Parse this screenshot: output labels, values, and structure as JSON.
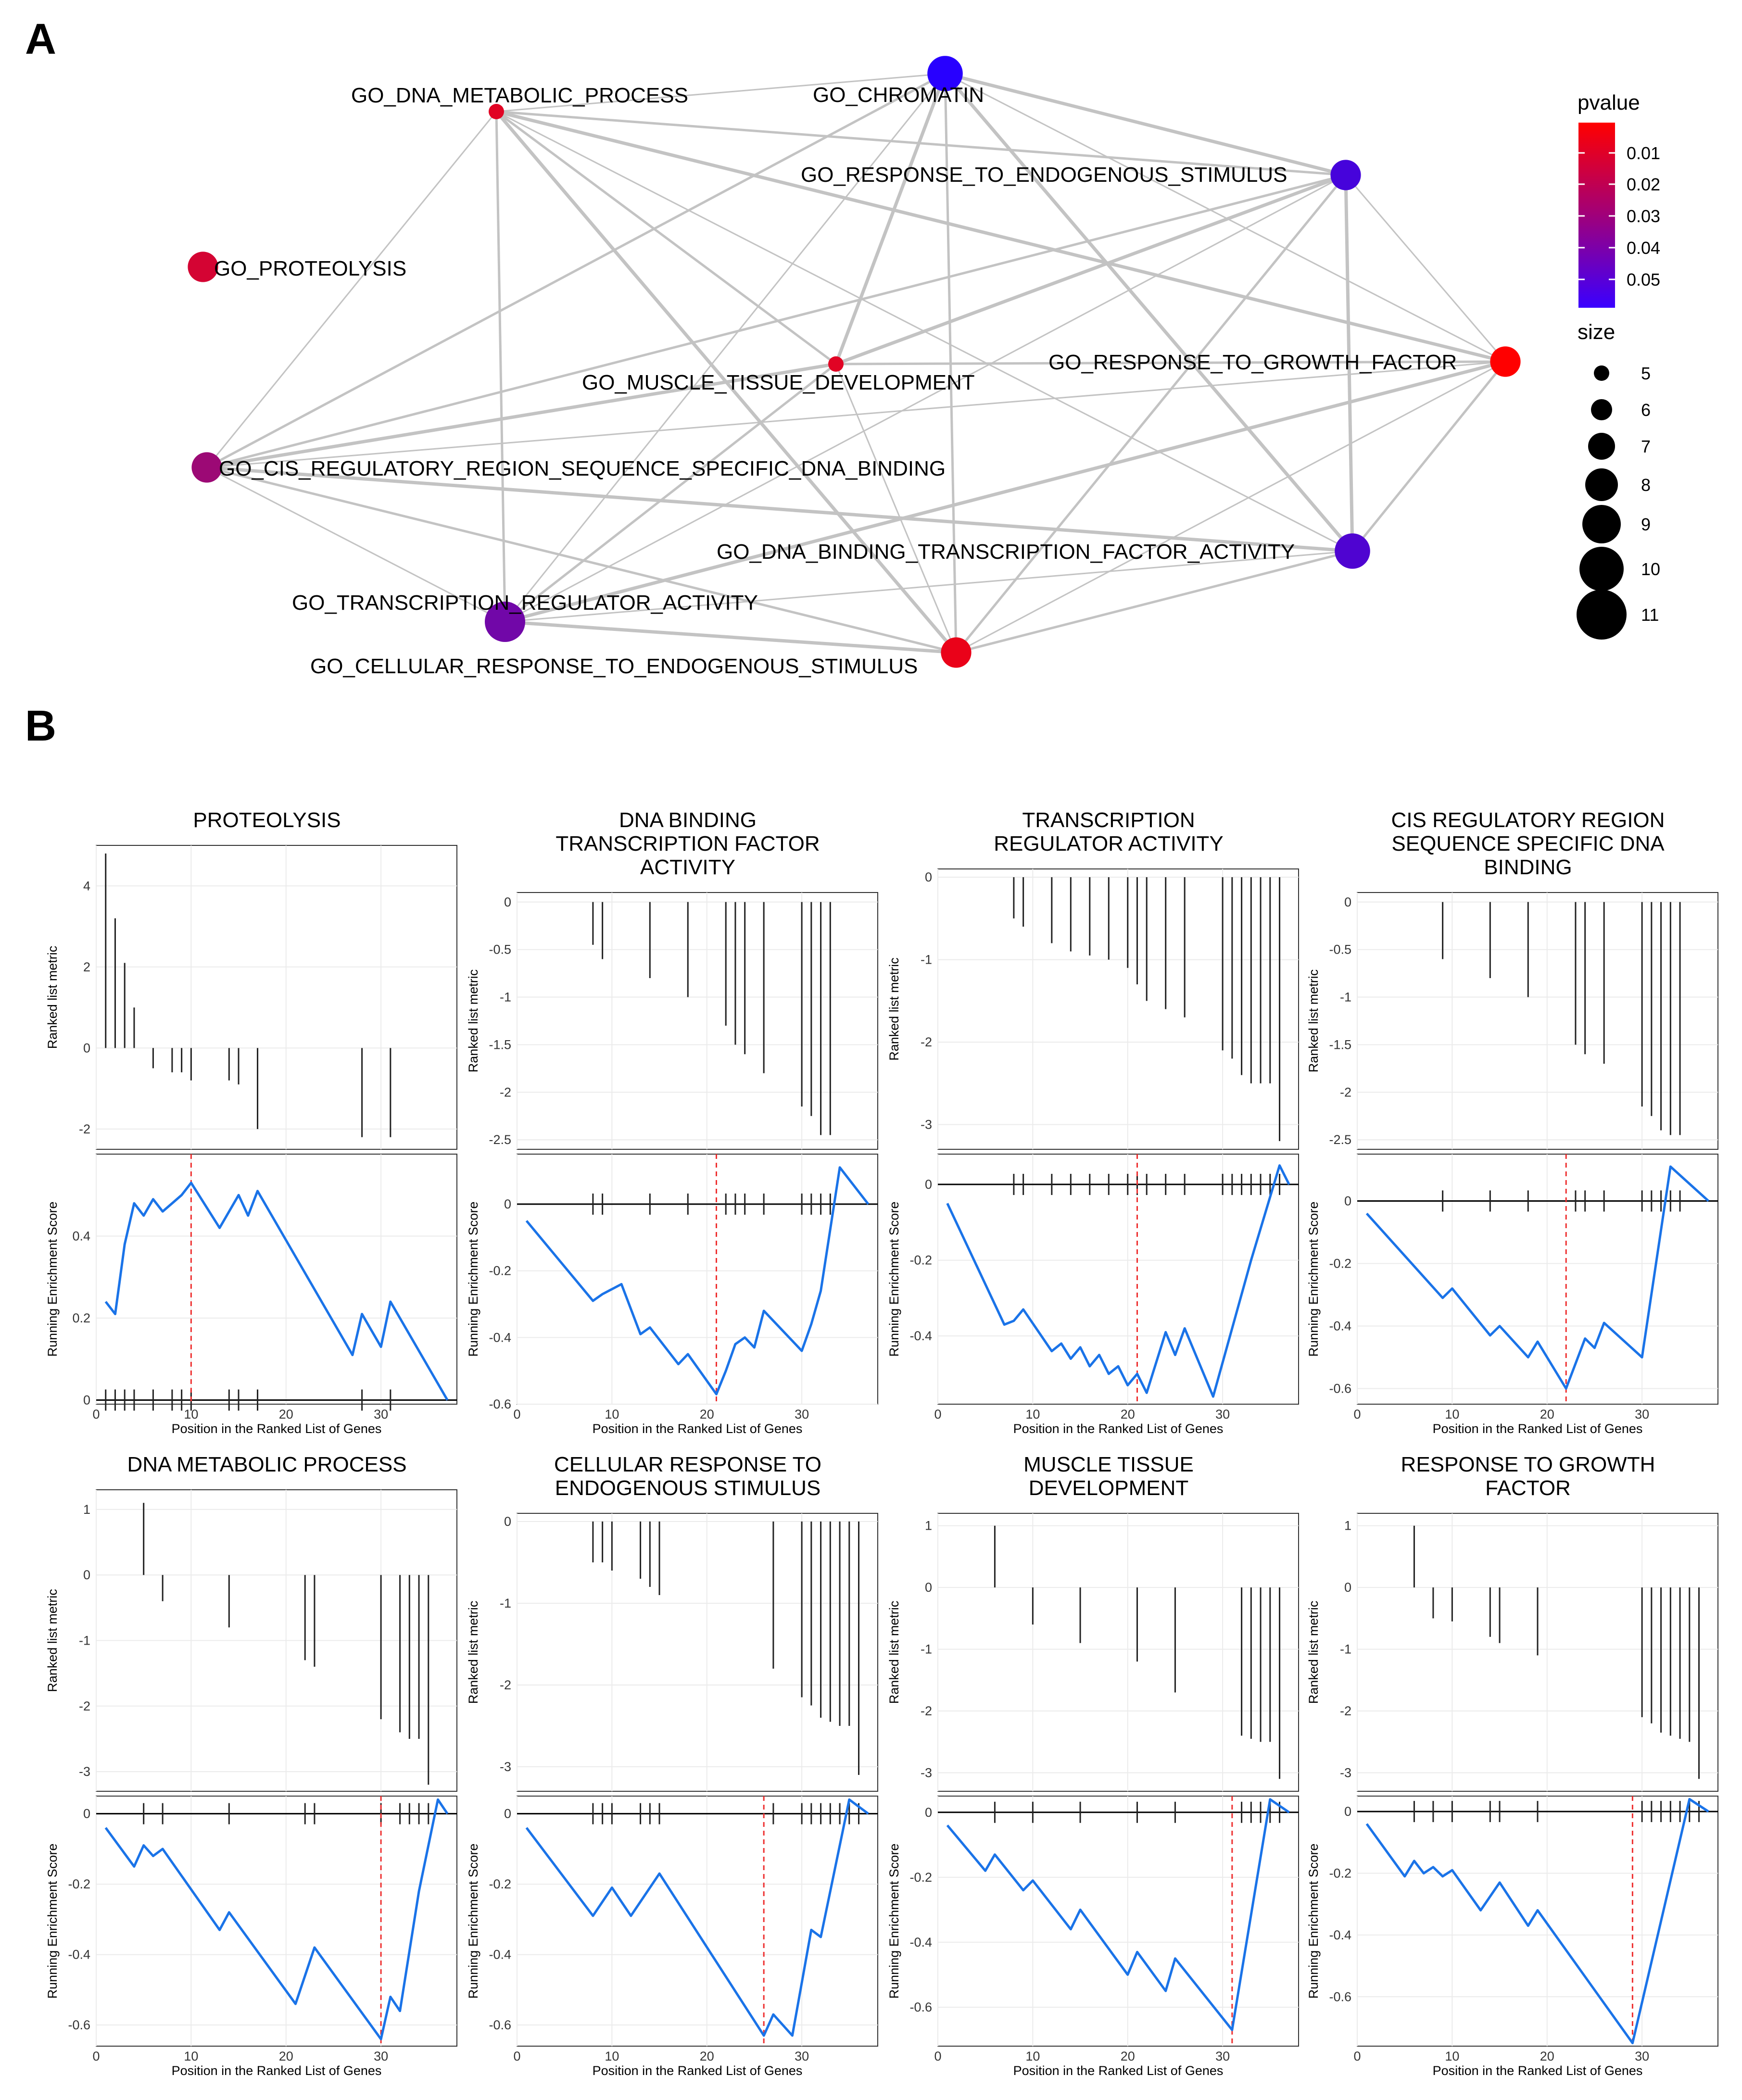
{
  "panel_labels": {
    "a": "A",
    "b": "B"
  },
  "network": {
    "legend": {
      "pvalue_title": "pvalue",
      "pvalue_ticks": [
        "0.01",
        "0.02",
        "0.03",
        "0.04",
        "0.05"
      ],
      "size_title": "size",
      "size_ticks": [
        "5",
        "6",
        "7",
        "8",
        "9",
        "10",
        "11"
      ],
      "color_low": "#ff0000",
      "color_high": "#0000ff"
    }
  },
  "chart_data": [
    {
      "type": "network",
      "title": "",
      "nodes": [
        {
          "id": "n0",
          "label": "GO_DNA_METABOLIC_PROCESS",
          "pvalue": 0.012,
          "size": 5
        },
        {
          "id": "n1",
          "label": "GO_CHROMATIN",
          "pvalue": 0.055,
          "size": 9
        },
        {
          "id": "n2",
          "label": "GO_RESPONSE_TO_ENDOGENOUS_STIMULUS",
          "pvalue": 0.048,
          "size": 8
        },
        {
          "id": "n3",
          "label": "GO_PROTEOLYSIS",
          "pvalue": 0.015,
          "size": 8
        },
        {
          "id": "n4",
          "label": "GO_MUSCLE_TISSUE_DEVELOPMENT",
          "pvalue": 0.012,
          "size": 5
        },
        {
          "id": "n5",
          "label": "GO_RESPONSE_TO_GROWTH_FACTOR",
          "pvalue": 0.005,
          "size": 8
        },
        {
          "id": "n6",
          "label": "GO_CIS_REGULATORY_REGION_SEQUENCE_SPECIFIC_DNA_BINDING",
          "pvalue": 0.028,
          "size": 8
        },
        {
          "id": "n7",
          "label": "GO_DNA_BINDING_TRANSCRIPTION_FACTOR_ACTIVITY",
          "pvalue": 0.046,
          "size": 9
        },
        {
          "id": "n8",
          "label": "GO_TRANSCRIPTION_REGULATOR_ACTIVITY",
          "pvalue": 0.038,
          "size": 10
        },
        {
          "id": "n9",
          "label": "GO_CELLULAR_RESPONSE_TO_ENDOGENOUS_STIMULUS",
          "pvalue": 0.01,
          "size": 8
        }
      ],
      "edges": [
        [
          "n0",
          "n1"
        ],
        [
          "n0",
          "n2"
        ],
        [
          "n0",
          "n5"
        ],
        [
          "n0",
          "n7"
        ],
        [
          "n0",
          "n8"
        ],
        [
          "n0",
          "n9"
        ],
        [
          "n0",
          "n6"
        ],
        [
          "n0",
          "n4"
        ],
        [
          "n1",
          "n2"
        ],
        [
          "n1",
          "n5"
        ],
        [
          "n1",
          "n6"
        ],
        [
          "n1",
          "n7"
        ],
        [
          "n1",
          "n8"
        ],
        [
          "n1",
          "n9"
        ],
        [
          "n1",
          "n4"
        ],
        [
          "n2",
          "n5"
        ],
        [
          "n2",
          "n6"
        ],
        [
          "n2",
          "n7"
        ],
        [
          "n2",
          "n8"
        ],
        [
          "n2",
          "n9"
        ],
        [
          "n2",
          "n4"
        ],
        [
          "n5",
          "n6"
        ],
        [
          "n5",
          "n7"
        ],
        [
          "n5",
          "n8"
        ],
        [
          "n5",
          "n9"
        ],
        [
          "n5",
          "n4"
        ],
        [
          "n6",
          "n7"
        ],
        [
          "n6",
          "n8"
        ],
        [
          "n6",
          "n9"
        ],
        [
          "n6",
          "n4"
        ],
        [
          "n7",
          "n8"
        ],
        [
          "n7",
          "n9"
        ],
        [
          "n8",
          "n9"
        ],
        [
          "n4",
          "n9"
        ],
        [
          "n4",
          "n8"
        ]
      ]
    },
    {
      "type": "gsea",
      "title": "PROTEOLYSIS",
      "xlabel": "Position in the Ranked List of Genes",
      "ylabel_top": "Ranked list metric",
      "ylabel_bottom": "Running Enrichment Score",
      "xlim": [
        0,
        38
      ],
      "xticks": [
        0,
        10,
        20,
        30
      ],
      "top_ylim": [
        -2.5,
        5
      ],
      "top_yticks": [
        -2,
        0,
        2,
        4
      ],
      "bottom_ylim": [
        -0.01,
        0.6
      ],
      "bottom_yticks": [
        0.0,
        0.2,
        0.4
      ],
      "peak": 10,
      "hits": [
        1,
        2,
        3,
        4,
        6,
        8,
        9,
        10,
        14,
        15,
        17,
        28,
        31
      ],
      "metric": [
        4.8,
        3.2,
        2.1,
        1.0,
        -0.5,
        -0.6,
        -0.6,
        -0.8,
        -0.8,
        -0.9,
        -2.0,
        -2.2,
        -2.2
      ],
      "running": [
        [
          1,
          0.24
        ],
        [
          2,
          0.21
        ],
        [
          3,
          0.38
        ],
        [
          4,
          0.48
        ],
        [
          5,
          0.45
        ],
        [
          6,
          0.49
        ],
        [
          7,
          0.46
        ],
        [
          8,
          0.48
        ],
        [
          9,
          0.5
        ],
        [
          10,
          0.53
        ],
        [
          13,
          0.42
        ],
        [
          15,
          0.5
        ],
        [
          16,
          0.45
        ],
        [
          17,
          0.51
        ],
        [
          27,
          0.11
        ],
        [
          28,
          0.21
        ],
        [
          30,
          0.13
        ],
        [
          31,
          0.24
        ],
        [
          37,
          0.0
        ]
      ]
    },
    {
      "type": "gsea",
      "title": "DNA BINDING TRANSCRIPTION FACTOR ACTIVITY",
      "xlabel": "Position in the Ranked List of Genes",
      "ylabel_top": "Ranked list metric",
      "ylabel_bottom": "Running Enrichment Score",
      "xlim": [
        0,
        38
      ],
      "xticks": [
        0,
        10,
        20,
        30
      ],
      "top_ylim": [
        -2.6,
        0.1
      ],
      "top_yticks": [
        0.0,
        -0.5,
        -1.0,
        -1.5,
        -2.0,
        -2.5
      ],
      "bottom_ylim": [
        -0.6,
        0.15
      ],
      "bottom_yticks": [
        0.0,
        -0.2,
        -0.4,
        -0.6
      ],
      "peak": 21,
      "hits": [
        8,
        9,
        14,
        18,
        22,
        23,
        24,
        26,
        30,
        31,
        32,
        33
      ],
      "metric": [
        -0.45,
        -0.6,
        -0.8,
        -1.0,
        -1.3,
        -1.5,
        -1.6,
        -1.8,
        -2.15,
        -2.25,
        -2.45,
        -2.45
      ],
      "running": [
        [
          1,
          -0.05
        ],
        [
          8,
          -0.29
        ],
        [
          9,
          -0.27
        ],
        [
          11,
          -0.24
        ],
        [
          13,
          -0.39
        ],
        [
          14,
          -0.37
        ],
        [
          17,
          -0.48
        ],
        [
          18,
          -0.45
        ],
        [
          21,
          -0.57
        ],
        [
          22,
          -0.5
        ],
        [
          23,
          -0.42
        ],
        [
          24,
          -0.4
        ],
        [
          25,
          -0.43
        ],
        [
          26,
          -0.32
        ],
        [
          30,
          -0.44
        ],
        [
          31,
          -0.36
        ],
        [
          32,
          -0.26
        ],
        [
          34,
          0.11
        ],
        [
          37,
          0.0
        ]
      ]
    },
    {
      "type": "gsea",
      "title": "TRANSCRIPTION REGULATOR ACTIVITY",
      "xlabel": "Position in the Ranked List of Genes",
      "ylabel_top": "Ranked list metric",
      "ylabel_bottom": "Running Enrichment Score",
      "xlim": [
        0,
        38
      ],
      "xticks": [
        0,
        10,
        20,
        30
      ],
      "top_ylim": [
        -3.3,
        0.1
      ],
      "top_yticks": [
        0,
        -1,
        -2,
        -3
      ],
      "bottom_ylim": [
        -0.58,
        0.08
      ],
      "bottom_yticks": [
        0.0,
        -0.2,
        -0.4
      ],
      "peak": 21,
      "hits": [
        8,
        9,
        12,
        14,
        16,
        18,
        20,
        21,
        22,
        24,
        26,
        30,
        31,
        32,
        33,
        34,
        35,
        36
      ],
      "metric": [
        -0.5,
        -0.6,
        -0.8,
        -0.9,
        -0.95,
        -1.0,
        -1.1,
        -1.3,
        -1.5,
        -1.6,
        -1.7,
        -2.1,
        -2.2,
        -2.4,
        -2.5,
        -2.5,
        -2.5,
        -3.2
      ],
      "running": [
        [
          1,
          -0.05
        ],
        [
          7,
          -0.37
        ],
        [
          8,
          -0.36
        ],
        [
          9,
          -0.33
        ],
        [
          12,
          -0.44
        ],
        [
          13,
          -0.42
        ],
        [
          14,
          -0.46
        ],
        [
          15,
          -0.43
        ],
        [
          16,
          -0.48
        ],
        [
          17,
          -0.45
        ],
        [
          18,
          -0.5
        ],
        [
          19,
          -0.48
        ],
        [
          20,
          -0.53
        ],
        [
          21,
          -0.5
        ],
        [
          22,
          -0.55
        ],
        [
          24,
          -0.39
        ],
        [
          25,
          -0.45
        ],
        [
          26,
          -0.38
        ],
        [
          29,
          -0.56
        ],
        [
          33,
          -0.2
        ],
        [
          36,
          0.05
        ],
        [
          37,
          0.0
        ]
      ]
    },
    {
      "type": "gsea",
      "title": "CIS REGULATORY REGION SEQUENCE SPECIFIC DNA BINDING",
      "xlabel": "Position in the Ranked List of Genes",
      "ylabel_top": "Ranked list metric",
      "ylabel_bottom": "Running Enrichment Score",
      "xlim": [
        0,
        38
      ],
      "xticks": [
        0,
        10,
        20,
        30
      ],
      "top_ylim": [
        -2.6,
        0.1
      ],
      "top_yticks": [
        0.0,
        -0.5,
        -1.0,
        -1.5,
        -2.0,
        -2.5
      ],
      "bottom_ylim": [
        -0.65,
        0.15
      ],
      "bottom_yticks": [
        0.0,
        -0.2,
        -0.4,
        -0.6
      ],
      "peak": 22,
      "hits": [
        9,
        14,
        18,
        23,
        24,
        26,
        30,
        31,
        32,
        33,
        34
      ],
      "metric": [
        -0.6,
        -0.8,
        -1.0,
        -1.5,
        -1.6,
        -1.7,
        -2.15,
        -2.25,
        -2.4,
        -2.45,
        -2.45
      ],
      "running": [
        [
          1,
          -0.04
        ],
        [
          9,
          -0.31
        ],
        [
          10,
          -0.28
        ],
        [
          14,
          -0.43
        ],
        [
          15,
          -0.4
        ],
        [
          18,
          -0.5
        ],
        [
          19,
          -0.45
        ],
        [
          22,
          -0.6
        ],
        [
          24,
          -0.44
        ],
        [
          25,
          -0.47
        ],
        [
          26,
          -0.39
        ],
        [
          30,
          -0.5
        ],
        [
          33,
          0.11
        ],
        [
          37,
          0.0
        ]
      ]
    },
    {
      "type": "gsea",
      "title": "DNA METABOLIC PROCESS",
      "xlabel": "Position in the Ranked List of Genes",
      "ylabel_top": "Ranked list metric",
      "ylabel_bottom": "Running Enrichment Score",
      "xlim": [
        0,
        38
      ],
      "xticks": [
        0,
        10,
        20,
        30
      ],
      "top_ylim": [
        -3.3,
        1.3
      ],
      "top_yticks": [
        1,
        0,
        -1,
        -2,
        -3
      ],
      "bottom_ylim": [
        -0.66,
        0.05
      ],
      "bottom_yticks": [
        0.0,
        -0.2,
        -0.4,
        -0.6
      ],
      "peak": 30,
      "hits": [
        5,
        7,
        14,
        22,
        23,
        30,
        32,
        33,
        34,
        35
      ],
      "metric": [
        1.1,
        -0.4,
        -0.8,
        -1.3,
        -1.4,
        -2.2,
        -2.4,
        -2.5,
        -2.5,
        -3.2
      ],
      "running": [
        [
          1,
          -0.04
        ],
        [
          4,
          -0.15
        ],
        [
          5,
          -0.09
        ],
        [
          6,
          -0.12
        ],
        [
          7,
          -0.1
        ],
        [
          13,
          -0.33
        ],
        [
          14,
          -0.28
        ],
        [
          21,
          -0.54
        ],
        [
          23,
          -0.38
        ],
        [
          30,
          -0.64
        ],
        [
          31,
          -0.52
        ],
        [
          32,
          -0.56
        ],
        [
          34,
          -0.22
        ],
        [
          36,
          0.04
        ],
        [
          37,
          0.0
        ]
      ]
    },
    {
      "type": "gsea",
      "title": "CELLULAR RESPONSE TO ENDOGENOUS STIMULUS",
      "xlabel": "Position in the Ranked List of Genes",
      "ylabel_top": "Ranked list metric",
      "ylabel_bottom": "Running Enrichment Score",
      "xlim": [
        0,
        38
      ],
      "xticks": [
        0,
        10,
        20,
        30
      ],
      "top_ylim": [
        -3.3,
        0.1
      ],
      "top_yticks": [
        0,
        -1,
        -2,
        -3
      ],
      "bottom_ylim": [
        -0.66,
        0.05
      ],
      "bottom_yticks": [
        0.0,
        -0.2,
        -0.4,
        -0.6
      ],
      "peak": 26,
      "hits": [
        8,
        9,
        10,
        13,
        14,
        15,
        27,
        30,
        31,
        32,
        33,
        34,
        35,
        36
      ],
      "metric": [
        -0.5,
        -0.5,
        -0.6,
        -0.7,
        -0.8,
        -0.9,
        -1.8,
        -2.15,
        -2.25,
        -2.4,
        -2.45,
        -2.5,
        -2.5,
        -3.1
      ],
      "running": [
        [
          1,
          -0.04
        ],
        [
          8,
          -0.29
        ],
        [
          10,
          -0.21
        ],
        [
          12,
          -0.29
        ],
        [
          15,
          -0.17
        ],
        [
          26,
          -0.63
        ],
        [
          27,
          -0.57
        ],
        [
          29,
          -0.63
        ],
        [
          31,
          -0.33
        ],
        [
          32,
          -0.35
        ],
        [
          35,
          0.04
        ],
        [
          37,
          0.0
        ]
      ]
    },
    {
      "type": "gsea",
      "title": "MUSCLE TISSUE DEVELOPMENT",
      "xlabel": "Position in the Ranked List of Genes",
      "ylabel_top": "Ranked list metric",
      "ylabel_bottom": "Running Enrichment Score",
      "xlim": [
        0,
        38
      ],
      "xticks": [
        0,
        10,
        20,
        30
      ],
      "top_ylim": [
        -3.3,
        1.2
      ],
      "top_yticks": [
        1,
        0,
        -1,
        -2,
        -3
      ],
      "bottom_ylim": [
        -0.72,
        0.05
      ],
      "bottom_yticks": [
        0.0,
        -0.2,
        -0.4,
        -0.6
      ],
      "peak": 31,
      "hits": [
        6,
        10,
        15,
        21,
        25,
        32,
        33,
        34,
        35,
        36
      ],
      "metric": [
        1.0,
        -0.6,
        -0.9,
        -1.2,
        -1.7,
        -2.4,
        -2.45,
        -2.5,
        -2.5,
        -3.1
      ],
      "running": [
        [
          1,
          -0.04
        ],
        [
          5,
          -0.18
        ],
        [
          6,
          -0.13
        ],
        [
          9,
          -0.24
        ],
        [
          10,
          -0.21
        ],
        [
          14,
          -0.36
        ],
        [
          15,
          -0.3
        ],
        [
          20,
          -0.5
        ],
        [
          21,
          -0.43
        ],
        [
          24,
          -0.55
        ],
        [
          25,
          -0.45
        ],
        [
          31,
          -0.67
        ],
        [
          35,
          0.04
        ],
        [
          37,
          0.0
        ]
      ]
    },
    {
      "type": "gsea",
      "title": "RESPONSE TO GROWTH FACTOR",
      "xlabel": "Position in the Ranked List of Genes",
      "ylabel_top": "Ranked list metric",
      "ylabel_bottom": "Running Enrichment Score",
      "xlim": [
        0,
        38
      ],
      "xticks": [
        0,
        10,
        20,
        30
      ],
      "top_ylim": [
        -3.3,
        1.2
      ],
      "top_yticks": [
        1,
        0,
        -1,
        -2,
        -3
      ],
      "bottom_ylim": [
        -0.76,
        0.05
      ],
      "bottom_yticks": [
        0.0,
        -0.2,
        -0.4,
        -0.6
      ],
      "peak": 29,
      "hits": [
        6,
        8,
        10,
        14,
        15,
        19,
        30,
        31,
        32,
        33,
        34,
        35,
        36
      ],
      "metric": [
        1.0,
        -0.5,
        -0.55,
        -0.8,
        -0.9,
        -1.1,
        -2.1,
        -2.2,
        -2.35,
        -2.4,
        -2.45,
        -2.5,
        -3.1
      ],
      "running": [
        [
          1,
          -0.04
        ],
        [
          5,
          -0.21
        ],
        [
          6,
          -0.16
        ],
        [
          7,
          -0.2
        ],
        [
          8,
          -0.18
        ],
        [
          9,
          -0.21
        ],
        [
          10,
          -0.19
        ],
        [
          13,
          -0.32
        ],
        [
          15,
          -0.23
        ],
        [
          18,
          -0.37
        ],
        [
          19,
          -0.32
        ],
        [
          29,
          -0.75
        ],
        [
          35,
          0.04
        ],
        [
          37,
          0.0
        ]
      ]
    }
  ]
}
